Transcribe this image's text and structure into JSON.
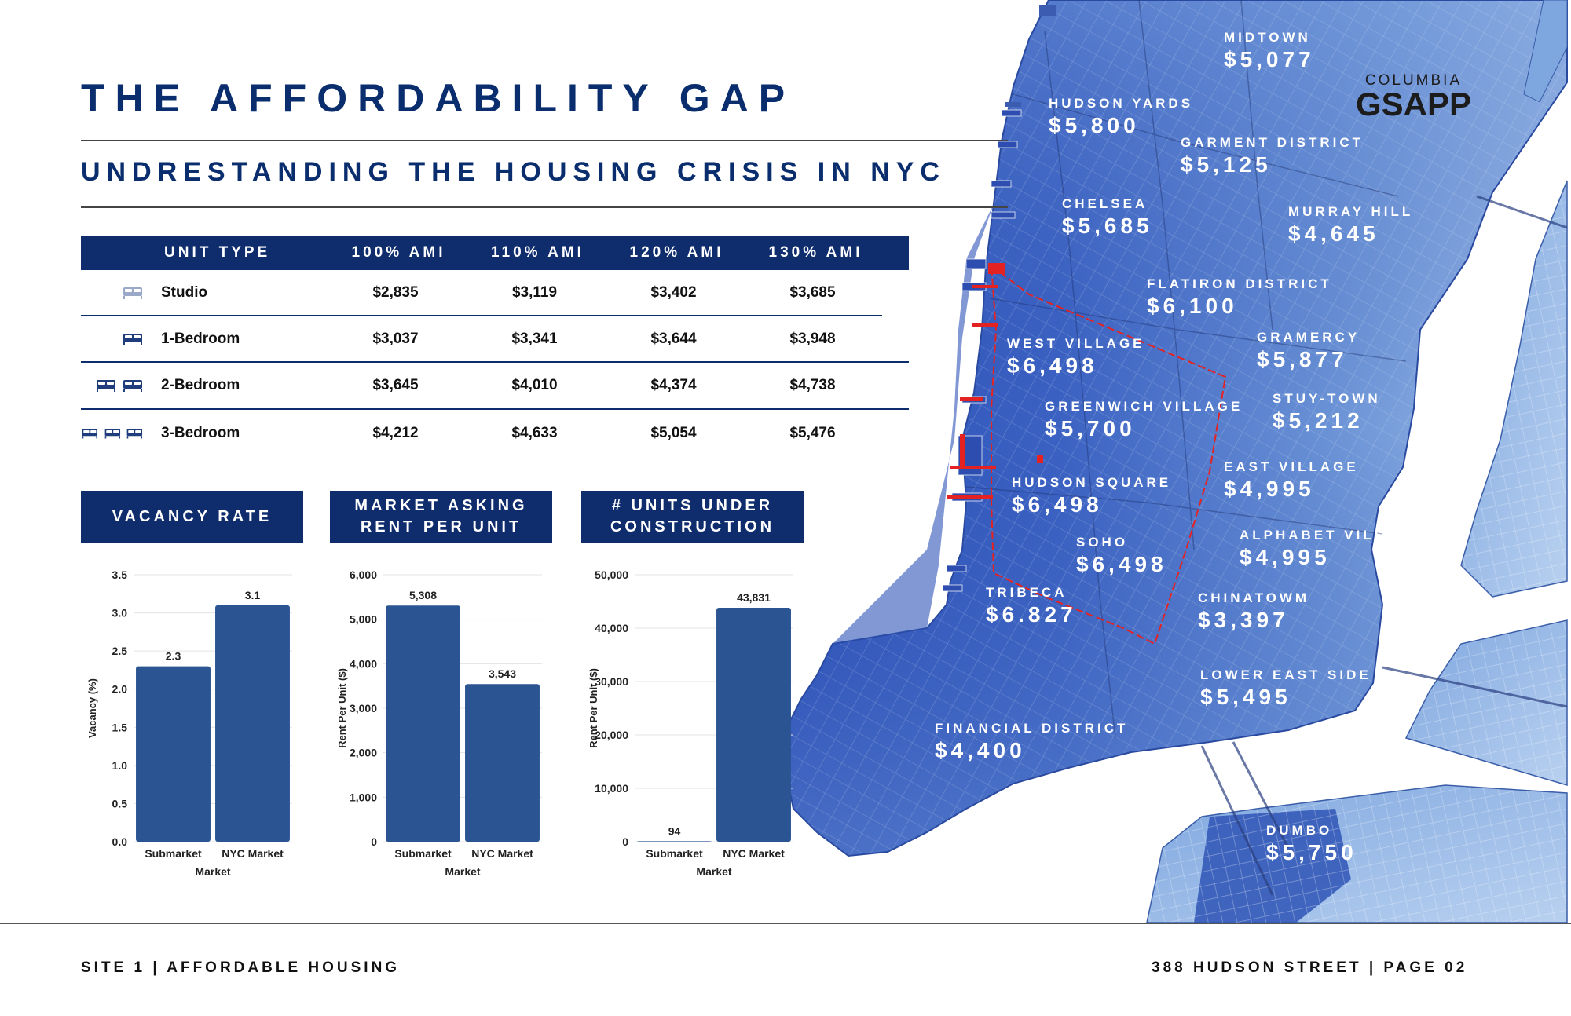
{
  "header": {
    "title": "THE AFFORDABILITY GAP",
    "subtitle": "UNDRESTANDING THE HOUSING CRISIS IN NYC"
  },
  "logo": {
    "line1": "COLUMBIA",
    "line2": "GSAPP"
  },
  "ami_table": {
    "columns": [
      "UNIT TYPE",
      "100% AMI",
      "110% AMI",
      "120% AMI",
      "130% AMI"
    ],
    "rows": [
      {
        "unit": "Studio",
        "values": [
          "$2,835",
          "$3,119",
          "$3,402",
          "$3,685"
        ],
        "beds": 1
      },
      {
        "unit": "1-Bedroom",
        "values": [
          "$3,037",
          "$3,341",
          "$3,644",
          "$3,948"
        ],
        "beds": 1
      },
      {
        "unit": "2-Bedroom",
        "values": [
          "$3,645",
          "$4,010",
          "$4,374",
          "$4,738"
        ],
        "beds": 2
      },
      {
        "unit": "3-Bedroom",
        "values": [
          "$4,212",
          "$4,633",
          "$5,054",
          "$5,476"
        ],
        "beds": 3
      }
    ]
  },
  "chart_headers": {
    "vacancy": "VACANCY RATE",
    "rent": "MARKET ASKING RENT PER UNIT",
    "construction": "# UNITS UNDER CONSTRUCTION"
  },
  "chart_data": [
    {
      "type": "bar",
      "title": "VACANCY RATE",
      "categories": [
        "Submarket",
        "NYC Market"
      ],
      "values": [
        2.3,
        3.1
      ],
      "value_labels": [
        "2.3",
        "3.1"
      ],
      "xlabel": "Market",
      "ylabel": "Vacancy (%)",
      "ylim": [
        0,
        3.5
      ],
      "yticks": [
        "0.0",
        "0.5",
        "1.0",
        "1.5",
        "2.0",
        "2.5",
        "3.0",
        "3.5"
      ],
      "color": "#2b5592"
    },
    {
      "type": "bar",
      "title": "MARKET ASKING RENT PER UNIT",
      "categories": [
        "Submarket",
        "NYC Market"
      ],
      "values": [
        5308,
        3543
      ],
      "value_labels": [
        "5,308",
        "3,543"
      ],
      "xlabel": "Market",
      "ylabel": "Rent Per Unit ($)",
      "ylim": [
        0,
        6000
      ],
      "yticks": [
        "0",
        "1,000",
        "2,000",
        "3,000",
        "4,000",
        "5,000",
        "6,000"
      ],
      "color": "#2b5592"
    },
    {
      "type": "bar",
      "title": "# UNITS UNDER CONSTRUCTION",
      "categories": [
        "Submarket",
        "NYC Market"
      ],
      "values": [
        94,
        43831
      ],
      "value_labels": [
        "94",
        "43,831"
      ],
      "xlabel": "Market",
      "ylabel": "Rent Per Unit ($)",
      "ylim": [
        0,
        50000
      ],
      "yticks": [
        "0",
        "10,000",
        "20,000",
        "30,000",
        "40,000",
        "50,000"
      ],
      "color": "#2b5592"
    }
  ],
  "map": {
    "neighborhoods": [
      {
        "name": "MIDTOWN",
        "rent": "$5,077"
      },
      {
        "name": "HUDSON YARDS",
        "rent": "$5,800"
      },
      {
        "name": "GARMENT DISTRICT",
        "rent": "$5,125"
      },
      {
        "name": "CHELSEA",
        "rent": "$5,685"
      },
      {
        "name": "MURRAY HILL",
        "rent": "$4,645"
      },
      {
        "name": "FLATIRON DISTRICT",
        "rent": "$6,100"
      },
      {
        "name": "WEST VILLAGE",
        "rent": "$6,498"
      },
      {
        "name": "GRAMERCY",
        "rent": "$5,877"
      },
      {
        "name": "GREENWICH VILLAGE",
        "rent": "$5,700"
      },
      {
        "name": "STUY-TOWN",
        "rent": "$5,212"
      },
      {
        "name": "EAST VILLAGE",
        "rent": "$4,995"
      },
      {
        "name": "HUDSON SQUARE",
        "rent": "$6,498"
      },
      {
        "name": "ALPHABET VILLAGE",
        "rent": "$4,995"
      },
      {
        "name": "SOHO",
        "rent": "$6,498"
      },
      {
        "name": "TRIBECA",
        "rent": "$6.827"
      },
      {
        "name": "CHINATOWM",
        "rent": "$3,397"
      },
      {
        "name": "LOWER EAST SIDE",
        "rent": "$5,495"
      },
      {
        "name": "FINANCIAL DISTRICT",
        "rent": "$4,400"
      },
      {
        "name": "DUMBO",
        "rent": "$5,750"
      }
    ]
  },
  "footer": {
    "left": "SITE 1 | AFFORDABLE HOUSING",
    "right": "388 HUDSON STREET | PAGE 02"
  }
}
